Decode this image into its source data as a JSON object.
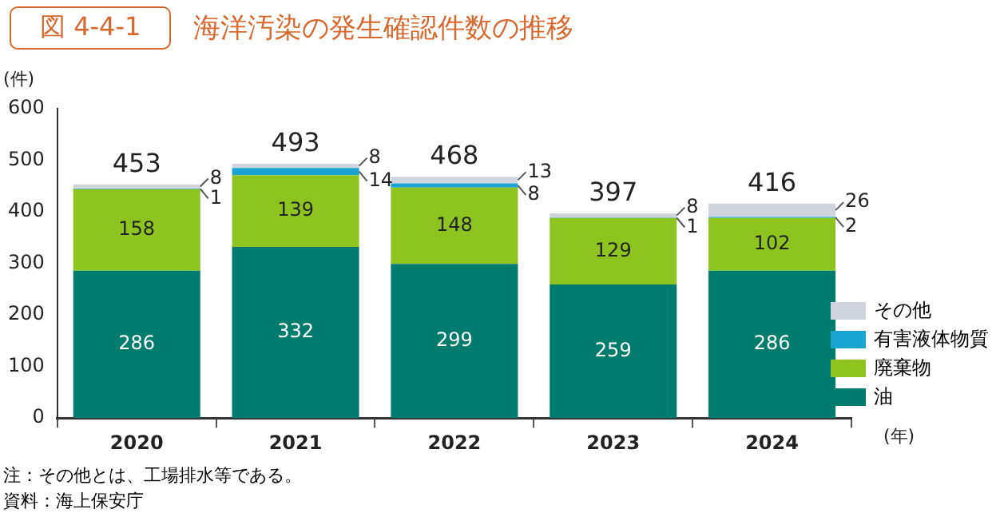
{
  "chart_data": {
    "type": "bar",
    "title": "海洋汚染の発生確認件数の推移",
    "subtitle": "図 4-4-1",
    "ylabel": "(件)",
    "xlabel": "(年)",
    "categories": [
      "2020",
      "2021",
      "2022",
      "2023",
      "2024"
    ],
    "series": [
      {
        "name": "油",
        "color": "#007c6e",
        "values": [
          286,
          332,
          299,
          259,
          286
        ]
      },
      {
        "name": "廃棄物",
        "color": "#8fc31f",
        "values": [
          158,
          139,
          148,
          129,
          102
        ]
      },
      {
        "name": "有害液体物質",
        "color": "#1aa5d0",
        "values": [
          1,
          14,
          8,
          1,
          2
        ]
      },
      {
        "name": "その他",
        "color": "#d0d4dc",
        "values": [
          8,
          8,
          13,
          8,
          26
        ]
      }
    ],
    "stacked": true,
    "ylim": [
      0,
      600
    ],
    "yticks": [
      0,
      100,
      200,
      300,
      400,
      500,
      600
    ],
    "grid": false,
    "legend": "bottom right",
    "data_labels": true,
    "totals": [
      "453",
      "493",
      "468",
      "397",
      "416"
    ],
    "annotations": [
      "注：その他とは、工場排水等である。",
      "資料：海上保安庁"
    ]
  }
}
